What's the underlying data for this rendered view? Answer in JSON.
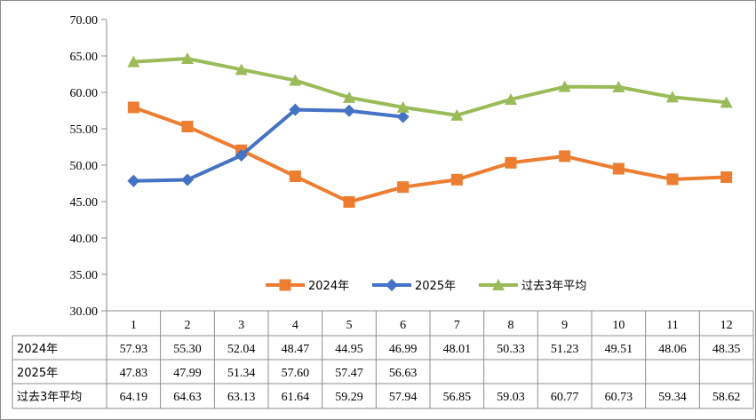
{
  "chart_data": {
    "type": "line",
    "categories": [
      "1",
      "2",
      "3",
      "4",
      "5",
      "6",
      "7",
      "8",
      "9",
      "10",
      "11",
      "12"
    ],
    "ylim": [
      30,
      70
    ],
    "yticks": [
      "30.00",
      "35.00",
      "40.00",
      "45.00",
      "50.00",
      "55.00",
      "60.00",
      "65.00",
      "70.00"
    ],
    "grid": false,
    "legend_position": "inside-bottom-center",
    "series": [
      {
        "name": "2024年",
        "color": "#ed7d31",
        "marker": "square",
        "values": [
          57.93,
          55.3,
          52.04,
          48.47,
          44.95,
          46.99,
          48.01,
          50.33,
          51.23,
          49.51,
          48.06,
          48.35
        ],
        "labels": [
          "57.93",
          "55.30",
          "52.04",
          "48.47",
          "44.95",
          "46.99",
          "48.01",
          "50.33",
          "51.23",
          "49.51",
          "48.06",
          "48.35"
        ]
      },
      {
        "name": "2025年",
        "color": "#4472c4",
        "marker": "diamond",
        "values": [
          47.83,
          47.99,
          51.34,
          57.6,
          57.47,
          56.63,
          null,
          null,
          null,
          null,
          null,
          null
        ],
        "labels": [
          "47.83",
          "47.99",
          "51.34",
          "57.60",
          "57.47",
          "56.63",
          "",
          "",
          "",
          "",
          "",
          ""
        ]
      },
      {
        "name": "过去3年平均",
        "color": "#9bbb59",
        "marker": "triangle",
        "values": [
          64.19,
          64.63,
          63.13,
          61.64,
          59.29,
          57.94,
          56.85,
          59.03,
          60.77,
          60.73,
          59.34,
          58.62
        ],
        "labels": [
          "64.19",
          "64.63",
          "63.13",
          "61.64",
          "59.29",
          "57.94",
          "56.85",
          "59.03",
          "60.77",
          "60.73",
          "59.34",
          "58.62"
        ]
      }
    ]
  }
}
